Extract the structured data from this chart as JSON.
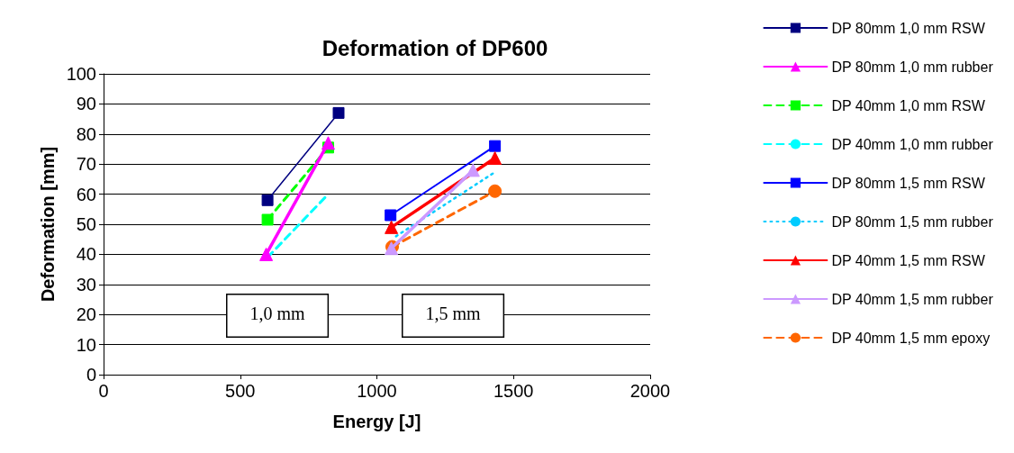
{
  "chart_data": {
    "type": "line",
    "title": "Deformation of DP600",
    "xlabel": "Energy [J]",
    "ylabel": "Deformation [mm]",
    "xlim": [
      0,
      2000
    ],
    "xticks": [
      0,
      500,
      1000,
      1500,
      2000
    ],
    "ylim": [
      0,
      100
    ],
    "yticks": [
      0,
      10,
      20,
      30,
      40,
      50,
      60,
      70,
      80,
      90,
      100
    ],
    "grid": "y",
    "legend": "right",
    "annotations": [
      "1,0 mm",
      "1,5 mm"
    ],
    "series": [
      {
        "name": "DP 80mm 1,0 mm RSW",
        "color": "#000080",
        "x": [
          600,
          860
        ],
        "values": [
          58,
          87
        ],
        "marker": "square",
        "line_style": "solid"
      },
      {
        "name": "DP 80mm 1,0 mm rubber",
        "color": "#ff00ff",
        "x": [
          595,
          822
        ],
        "values": [
          40,
          77
        ],
        "marker": "triangle",
        "line_style": "solid"
      },
      {
        "name": "DP 40mm 1,0 mm RSW",
        "color": "#00ff00",
        "x": [
          600,
          822
        ],
        "values": [
          51.5,
          75.5
        ],
        "marker": "square",
        "line_style": "dashed"
      },
      {
        "name": "DP 40mm 1,0 mm rubber",
        "color": "#00ffff",
        "x": [
          600,
          822
        ],
        "values": [
          39,
          60
        ],
        "marker": "none",
        "line_style": "dashed"
      },
      {
        "name": "DP 80mm 1,5 mm RSW",
        "color": "#0000ff",
        "x": [
          1050,
          1432
        ],
        "values": [
          53,
          76
        ],
        "marker": "square",
        "line_style": "solid"
      },
      {
        "name": "DP 80mm 1,5 mm rubber",
        "color": "#00ccff",
        "x": [
          1070,
          1435
        ],
        "values": [
          46,
          67.5
        ],
        "marker": "none",
        "line_style": "dotted"
      },
      {
        "name": "DP 40mm 1,5 mm RSW",
        "color": "#ff0000",
        "x": [
          1053,
          1432
        ],
        "values": [
          49,
          72
        ],
        "marker": "triangle",
        "line_style": "solid"
      },
      {
        "name": "DP 40mm 1,5 mm rubber",
        "color": "#cc99ff",
        "x": [
          1053,
          1352
        ],
        "values": [
          42,
          68
        ],
        "marker": "triangle",
        "line_style": "solid"
      },
      {
        "name": "DP 40mm 1,5 mm epoxy",
        "color": "#ff6600",
        "x": [
          1056,
          1432
        ],
        "values": [
          42.5,
          61
        ],
        "marker": "circle",
        "line_style": "dashed"
      }
    ]
  }
}
